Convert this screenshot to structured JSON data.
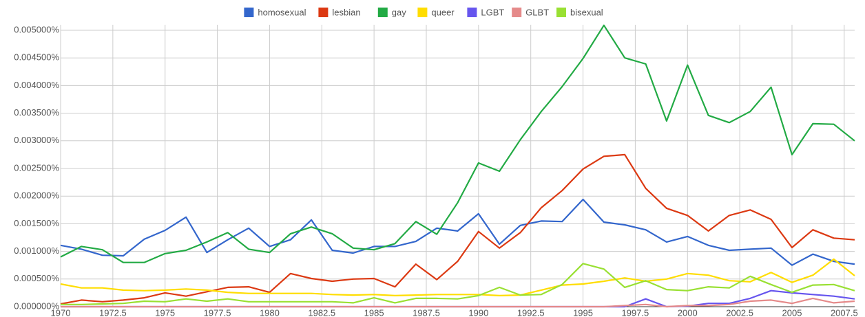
{
  "chart_data": {
    "type": "line",
    "x": [
      1970,
      1971,
      1972,
      1973,
      1974,
      1975,
      1976,
      1977,
      1978,
      1979,
      1980,
      1981,
      1982,
      1983,
      1984,
      1985,
      1986,
      1987,
      1988,
      1989,
      1990,
      1991,
      1992,
      1993,
      1994,
      1995,
      1996,
      1997,
      1998,
      1999,
      2000,
      2001,
      2002,
      2003,
      2004,
      2005,
      2006,
      2007,
      2008
    ],
    "series": [
      {
        "name": "homosexual",
        "color": "#3366cc",
        "values": [
          0.00111,
          0.00104,
          0.00093,
          0.00092,
          0.00122,
          0.00138,
          0.00162,
          0.00098,
          0.00121,
          0.00142,
          0.00109,
          0.00121,
          0.00157,
          0.00102,
          0.00097,
          0.00109,
          0.00109,
          0.00118,
          0.00142,
          0.00137,
          0.00168,
          0.00113,
          0.00147,
          0.00155,
          0.00154,
          0.00194,
          0.00153,
          0.00148,
          0.00139,
          0.00117,
          0.00127,
          0.00111,
          0.00102,
          0.00104,
          0.00106,
          0.00075,
          0.00095,
          0.00082,
          0.00077
        ]
      },
      {
        "name": "lesbian",
        "color": "#dc3912",
        "values": [
          5e-05,
          0.00012,
          9e-05,
          0.00012,
          0.00016,
          0.00025,
          0.00019,
          0.00027,
          0.00035,
          0.00036,
          0.00026,
          0.0006,
          0.00051,
          0.00046,
          0.0005,
          0.00051,
          0.00036,
          0.00077,
          0.00049,
          0.00082,
          0.00136,
          0.00106,
          0.00134,
          0.00179,
          0.0021,
          0.00249,
          0.00272,
          0.00275,
          0.00214,
          0.00178,
          0.00165,
          0.00137,
          0.00165,
          0.00175,
          0.00158,
          0.00107,
          0.00139,
          0.00124,
          0.00121
        ]
      },
      {
        "name": "gay",
        "color": "#22aa44",
        "values": [
          0.0009,
          0.00109,
          0.00103,
          0.0008,
          0.0008,
          0.00096,
          0.00102,
          0.00117,
          0.00134,
          0.00104,
          0.00098,
          0.00132,
          0.00144,
          0.00132,
          0.00106,
          0.00103,
          0.00114,
          0.00154,
          0.00131,
          0.00188,
          0.0026,
          0.00245,
          0.00302,
          0.00353,
          0.00398,
          0.00449,
          0.00509,
          0.0045,
          0.00439,
          0.00336,
          0.00437,
          0.00346,
          0.00333,
          0.00353,
          0.00397,
          0.00275,
          0.00331,
          0.0033,
          0.003
        ]
      },
      {
        "name": "queer",
        "color": "#ffdd00",
        "values": [
          0.00041,
          0.00034,
          0.00034,
          0.0003,
          0.00029,
          0.0003,
          0.00032,
          0.0003,
          0.00026,
          0.00024,
          0.00024,
          0.00024,
          0.00024,
          0.00022,
          0.00021,
          0.00022,
          0.0002,
          0.00021,
          0.00022,
          0.00022,
          0.00022,
          0.0002,
          0.00021,
          0.0003,
          0.00039,
          0.00041,
          0.00046,
          0.00052,
          0.00046,
          0.0005,
          0.0006,
          0.00057,
          0.00047,
          0.00045,
          0.00062,
          0.00044,
          0.00057,
          0.00086,
          0.00056
        ]
      },
      {
        "name": "LGBT",
        "color": "#6655ee",
        "values": [
          0,
          0,
          0,
          0,
          0,
          0,
          0,
          0,
          0,
          0,
          0,
          0,
          0,
          0,
          0,
          0,
          0,
          0,
          0,
          0,
          0,
          0,
          0,
          0,
          0,
          0,
          0,
          0,
          0.00014,
          0,
          1e-05,
          6e-05,
          6e-05,
          0.00015,
          0.00029,
          0.00025,
          0.00022,
          0.00019,
          0.00014
        ]
      },
      {
        "name": "GLBT",
        "color": "#e58a8a",
        "values": [
          0,
          0,
          0,
          0,
          0,
          0,
          0,
          0,
          0,
          0,
          0,
          0,
          0,
          0,
          0,
          0,
          0,
          0,
          0,
          0,
          0,
          0,
          0,
          0,
          0,
          0,
          0,
          2e-05,
          4e-05,
          0,
          2e-05,
          2e-05,
          4e-05,
          0.0001,
          0.00012,
          6e-05,
          0.00015,
          7e-05,
          0.0001
        ]
      },
      {
        "name": "bisexual",
        "color": "#99e033",
        "values": [
          4e-05,
          4e-05,
          5e-05,
          6e-05,
          0.0001,
          9e-05,
          0.00014,
          0.0001,
          0.00014,
          9e-05,
          9e-05,
          9e-05,
          9e-05,
          9e-05,
          7e-05,
          0.00016,
          7e-05,
          0.00015,
          0.00015,
          0.00014,
          0.0002,
          0.00035,
          0.00021,
          0.00022,
          0.0004,
          0.00078,
          0.00068,
          0.00035,
          0.00047,
          0.00031,
          0.00029,
          0.00036,
          0.00034,
          0.00055,
          0.0004,
          0.00026,
          0.00039,
          0.0004,
          0.00029
        ]
      }
    ],
    "xlim": [
      1970,
      2008
    ],
    "xticks": [
      1970,
      1972.5,
      1975,
      1977.5,
      1980,
      1982.5,
      1985,
      1987.5,
      1990,
      1992.5,
      1995,
      1997.5,
      2000,
      2002.5,
      2005,
      2007.5
    ],
    "ylim": [
      0,
      0.005
    ],
    "yticks": [
      {
        "value": 0,
        "label": "0.000000%"
      },
      {
        "value": 0.0005,
        "label": "0.000500%"
      },
      {
        "value": 0.001,
        "label": "0.001000%"
      },
      {
        "value": 0.0015,
        "label": "0.001500%"
      },
      {
        "value": 0.002,
        "label": "0.002000%"
      },
      {
        "value": 0.0025,
        "label": "0.002500%"
      },
      {
        "value": 0.003,
        "label": "0.003000%"
      },
      {
        "value": 0.0035,
        "label": "0.003500%"
      },
      {
        "value": 0.004,
        "label": "0.004000%"
      },
      {
        "value": 0.0045,
        "label": "0.004500%"
      },
      {
        "value": 0.005,
        "label": "0.005000%"
      }
    ],
    "grid": true,
    "legend": "top"
  }
}
